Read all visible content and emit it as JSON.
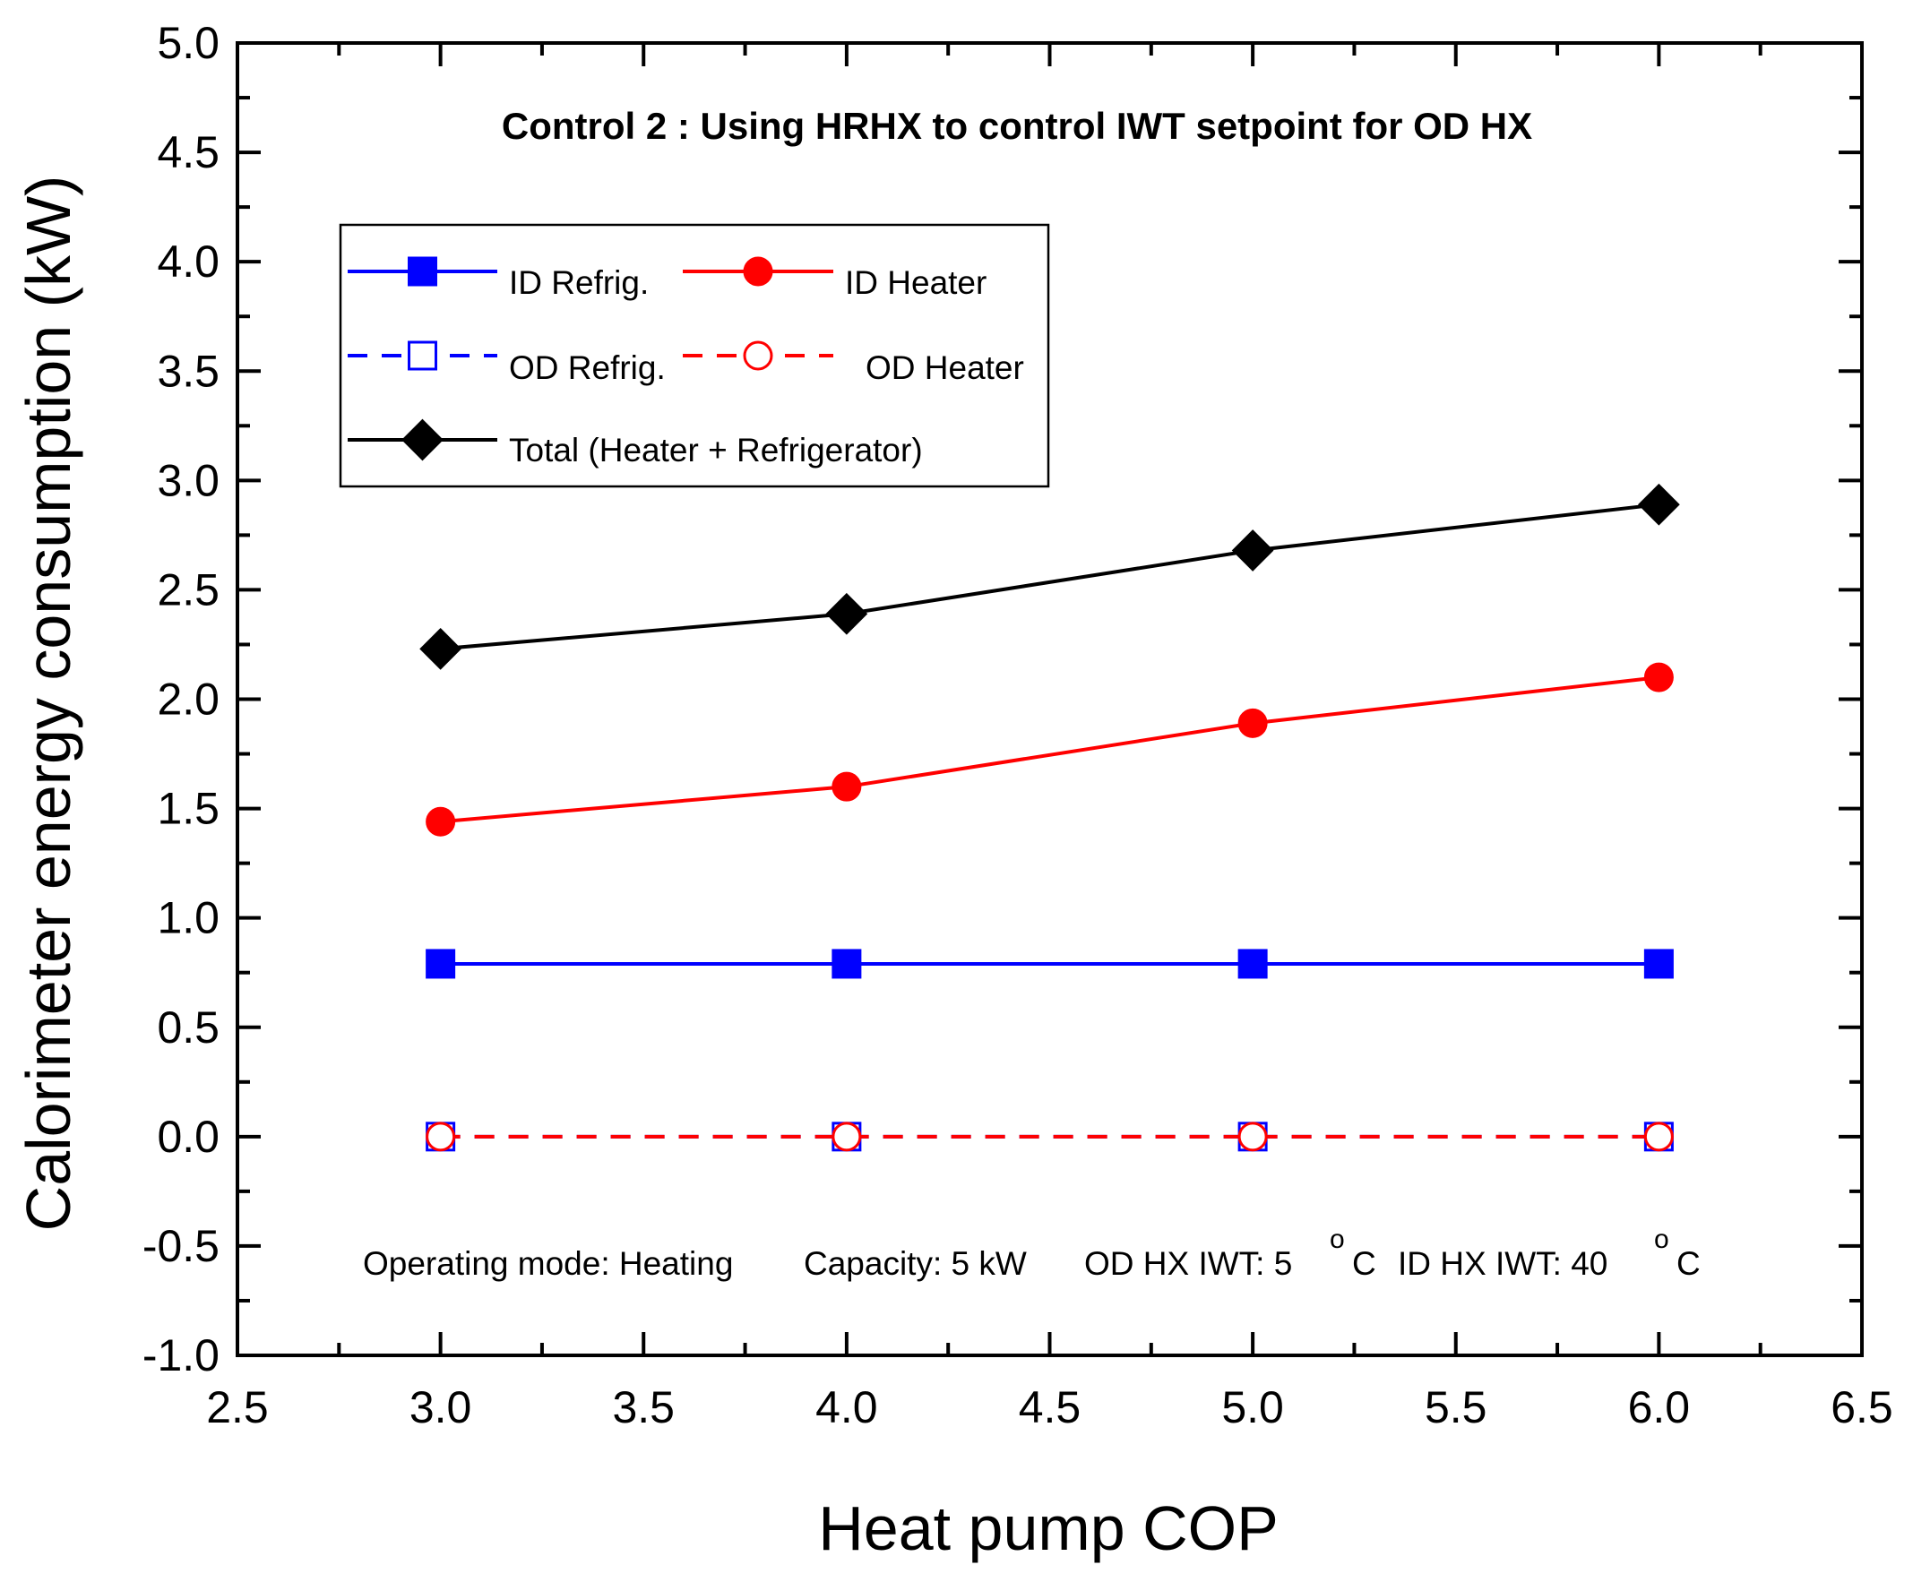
{
  "chart_data": {
    "type": "line",
    "title": "Control 2 : Using HRHX to control IWT setpoint for OD HX",
    "xlabel": "Heat pump COP",
    "ylabel": "Calorimeter energy consumption (kW)",
    "xlim": [
      2.5,
      6.5
    ],
    "ylim": [
      -1.0,
      5.0
    ],
    "x_ticks": [
      "2.5",
      "3.0",
      "3.5",
      "4.0",
      "4.5",
      "5.0",
      "5.5",
      "6.0",
      "6.5"
    ],
    "x_tick_values": [
      2.5,
      3.0,
      3.5,
      4.0,
      4.5,
      5.0,
      5.5,
      6.0,
      6.5
    ],
    "y_ticks": [
      "-1.0",
      "-0.5",
      "0.0",
      "0.5",
      "1.0",
      "1.5",
      "2.0",
      "2.5",
      "3.0",
      "3.5",
      "4.0",
      "4.5",
      "5.0"
    ],
    "y_tick_values": [
      -1.0,
      -0.5,
      0.0,
      0.5,
      1.0,
      1.5,
      2.0,
      2.5,
      3.0,
      3.5,
      4.0,
      4.5,
      5.0
    ],
    "grid": false,
    "legend_position": "top-left",
    "x": [
      3,
      4,
      5,
      6
    ],
    "series": [
      {
        "name": "ID Refrig.",
        "values": [
          0.79,
          0.79,
          0.79,
          0.79
        ],
        "color": "#0000ff",
        "marker": "square",
        "filled": true,
        "dashed": false
      },
      {
        "name": "ID Heater",
        "values": [
          1.44,
          1.6,
          1.89,
          2.1
        ],
        "color": "#ff0000",
        "marker": "circle",
        "filled": true,
        "dashed": false
      },
      {
        "name": "OD Refrig.",
        "values": [
          0.0,
          0.0,
          0.0,
          0.0
        ],
        "color": "#0000ff",
        "marker": "square",
        "filled": false,
        "dashed": true
      },
      {
        "name": "OD Heater",
        "values": [
          0.0,
          0.0,
          0.0,
          0.0
        ],
        "color": "#ff0000",
        "marker": "circle",
        "filled": false,
        "dashed": true
      },
      {
        "name": "Total (Heater + Refrigerator)",
        "values": [
          2.23,
          2.39,
          2.68,
          2.89
        ],
        "color": "#000000",
        "marker": "diamond",
        "filled": true,
        "dashed": false
      }
    ],
    "annotation": {
      "mode": "Operating mode: Heating",
      "capacity": "Capacity: 5 kW",
      "od_iwt": "OD HX IWT: 5",
      "id_iwt": "ID HX IWT: 40",
      "degree_sup": "o",
      "unit_c": "C"
    }
  }
}
